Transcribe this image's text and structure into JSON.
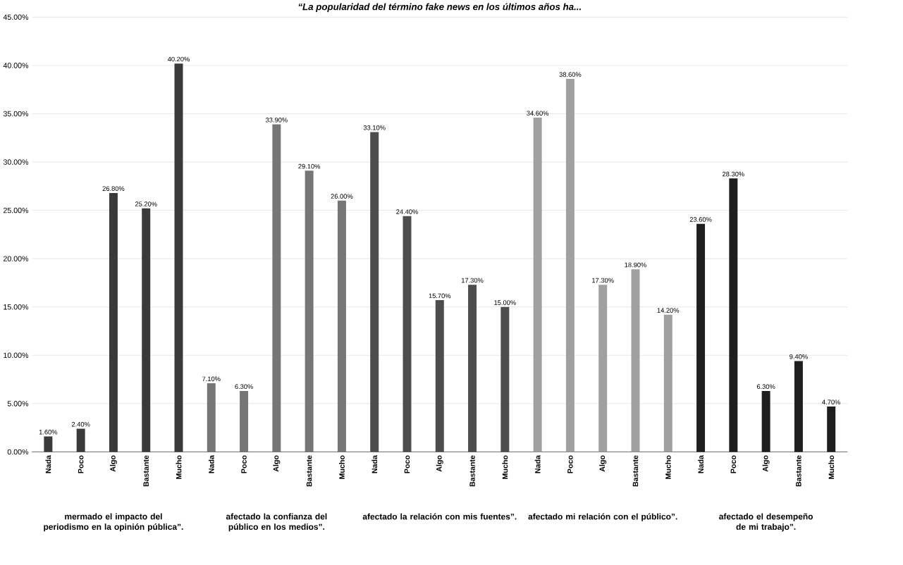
{
  "chart_data": {
    "type": "bar",
    "title": "“La popularidad del término fake news en los últimos años ha...",
    "categories": [
      "Nada",
      "Poco",
      "Algo",
      "Bastante",
      "Mucho",
      "Nada",
      "Poco",
      "Algo",
      "Bastante",
      "Mucho",
      "Nada",
      "Poco",
      "Algo",
      "Bastante",
      "Mucho",
      "Nada",
      "Poco",
      "Algo",
      "Bastante",
      "Mucho",
      "Nada",
      "Poco",
      "Algo",
      "Bastante",
      "Mucho"
    ],
    "values": [
      1.6,
      2.4,
      26.8,
      25.2,
      40.2,
      7.1,
      6.3,
      33.9,
      29.1,
      26.0,
      33.1,
      24.4,
      15.7,
      17.3,
      15.0,
      34.6,
      38.6,
      17.3,
      18.9,
      14.2,
      23.6,
      28.3,
      6.3,
      9.4,
      4.7
    ],
    "value_labels": [
      "1.60%",
      "2.40%",
      "26.80%",
      "25.20%",
      "40.20%",
      "7.10%",
      "6.30%",
      "33.90%",
      "29.10%",
      "26.00%",
      "33.10%",
      "24.40%",
      "15.70%",
      "17.30%",
      "15.00%",
      "34.60%",
      "38.60%",
      "17.30%",
      "18.90%",
      "14.20%",
      "23.60%",
      "28.30%",
      "6.30%",
      "9.40%",
      "4.70%"
    ],
    "colors": [
      "#3a3a3a",
      "#3a3a3a",
      "#3a3a3a",
      "#3a3a3a",
      "#3a3a3a",
      "#767676",
      "#767676",
      "#767676",
      "#767676",
      "#767676",
      "#4d4d4d",
      "#4d4d4d",
      "#4d4d4d",
      "#4d4d4d",
      "#4d4d4d",
      "#a0a0a0",
      "#a0a0a0",
      "#a0a0a0",
      "#a0a0a0",
      "#a0a0a0",
      "#1e1e1e",
      "#1e1e1e",
      "#1e1e1e",
      "#1e1e1e",
      "#1e1e1e"
    ],
    "ylim": [
      0,
      45
    ],
    "yticks": [
      {
        "value": 0,
        "label": "0.00%"
      },
      {
        "value": 5,
        "label": "5.00%"
      },
      {
        "value": 10,
        "label": "10.00%"
      },
      {
        "value": 15,
        "label": "15.00%"
      },
      {
        "value": 20,
        "label": "20.00%"
      },
      {
        "value": 25,
        "label": "25.00%"
      },
      {
        "value": 30,
        "label": "30.00%"
      },
      {
        "value": 35,
        "label": "35.00%"
      },
      {
        "value": 40,
        "label": "40.00%"
      },
      {
        "value": 45,
        "label": "45.00%"
      }
    ],
    "grid": "y",
    "annotations": [
      "mermado  el impacto del  periodismo en la opinión pública”.",
      "afectado la confianza del público en los medios”.",
      "afectado la relación con mis fuentes”.",
      "afectado mi relación con el público”.",
      "afectado el desempeño de mi trabajo”."
    ]
  }
}
